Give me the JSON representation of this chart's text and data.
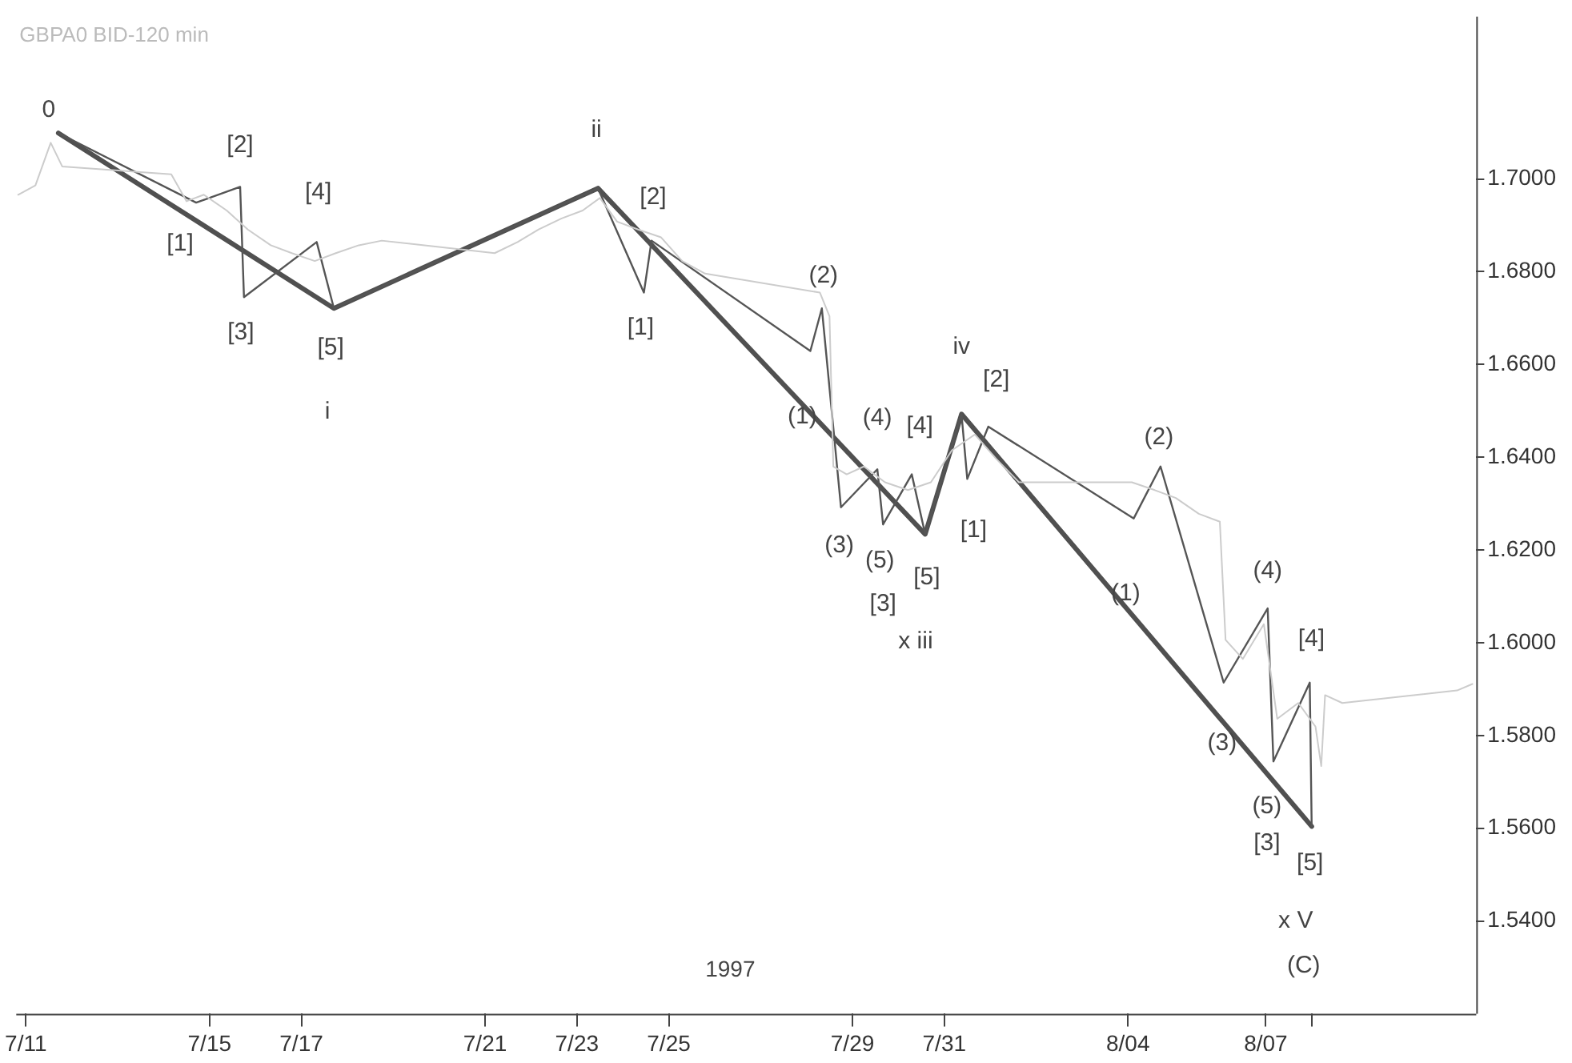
{
  "chart_data": {
    "type": "line",
    "title": "GBPA0 BID-120 min",
    "xlabel": "1997",
    "xlim": [
      "1997-07-10T19:00",
      "1997-08-11T14:00"
    ],
    "xticks": [
      {
        "value": "1997-07-11",
        "label": "7/11"
      },
      {
        "value": "1997-07-15",
        "label": "7/15"
      },
      {
        "value": "1997-07-17",
        "label": "7/17"
      },
      {
        "value": "1997-07-21",
        "label": "7/21"
      },
      {
        "value": "1997-07-23",
        "label": "7/23"
      },
      {
        "value": "1997-07-25",
        "label": "7/25"
      },
      {
        "value": "1997-07-29",
        "label": "7/29"
      },
      {
        "value": "1997-07-31",
        "label": "7/31"
      },
      {
        "value": "1997-08-04",
        "label": "8/04"
      },
      {
        "value": "1997-08-07",
        "label": "8/07"
      },
      {
        "value": "1997-08-08",
        "label": null
      }
    ],
    "ylim": [
      1.52,
      1.735
    ],
    "yticks": [
      {
        "value": 1.54,
        "label": "1.5400"
      },
      {
        "value": 1.56,
        "label": "1.5600"
      },
      {
        "value": 1.58,
        "label": "1.5800"
      },
      {
        "value": 1.6,
        "label": "1.6000"
      },
      {
        "value": 1.62,
        "label": "1.6200"
      },
      {
        "value": 1.64,
        "label": "1.6400"
      },
      {
        "value": 1.66,
        "label": "1.6600"
      },
      {
        "value": 1.68,
        "label": "1.6800"
      },
      {
        "value": 1.7,
        "label": "1.7000"
      }
    ],
    "grid": false,
    "legend": false,
    "marker": "none",
    "line_style": "solid",
    "series": [
      {
        "color": "#cccccc",
        "x": [
          "1997-07-10T20:00",
          "1997-07-11T05:00",
          "1997-07-11T13:00",
          "1997-07-11T19:00",
          "1997-07-14T04:00",
          "1997-07-14T12:00",
          "1997-07-14T21:00",
          "1997-07-15T09:00",
          "1997-07-15T20:00",
          "1997-07-16T08:00",
          "1997-07-16T19:00",
          "1997-07-17T07:00",
          "1997-07-17T18:00",
          "1997-07-18T06:00",
          "1997-07-18T18:00",
          "1997-07-21T05:00",
          "1997-07-21T17:00",
          "1997-07-22T04:00",
          "1997-07-22T16:00",
          "1997-07-23T03:00",
          "1997-07-23T12:00",
          "1997-07-23T21:00",
          "1997-07-24T08:00",
          "1997-07-24T20:00",
          "1997-07-25T07:00",
          "1997-07-25T19:00",
          "1997-07-28T07:00",
          "1997-07-28T12:00",
          "1997-07-28T14:00",
          "1997-07-28T21:00",
          "1997-07-29T06:00",
          "1997-07-29T17:00",
          "1997-07-30T05:00",
          "1997-07-30T17:00",
          "1997-07-31T04:00",
          "1997-07-31T16:00",
          "1997-08-01T03:00",
          "1997-08-01T15:00",
          "1997-08-04T02:00",
          "1997-08-04T14:00",
          "1997-08-05T01:00",
          "1997-08-05T13:00",
          "1997-08-06T00:00",
          "1997-08-06T03:00",
          "1997-08-06T12:00",
          "1997-08-06T23:00",
          "1997-08-07T06:00",
          "1997-08-07T17:00",
          "1997-08-08T02:00",
          "1997-08-08T05:00",
          "1997-08-08T07:00",
          "1997-08-08T16:00",
          "1997-08-11T04:00",
          "1997-08-11T12:00"
        ],
        "values": [
          1.6966,
          1.6986,
          1.7078,
          1.7027,
          1.701,
          1.6952,
          1.6966,
          1.6932,
          1.6891,
          1.6857,
          1.684,
          1.6823,
          1.684,
          1.6857,
          1.6867,
          1.684,
          1.6864,
          1.6891,
          1.6915,
          1.6932,
          1.6959,
          1.6908,
          1.6891,
          1.6874,
          1.6823,
          1.6796,
          1.6755,
          1.6704,
          1.638,
          1.6363,
          1.638,
          1.6346,
          1.6329,
          1.6346,
          1.6415,
          1.6449,
          1.6397,
          1.6346,
          1.6346,
          1.6329,
          1.6312,
          1.6278,
          1.6261,
          1.6006,
          1.5965,
          1.604,
          1.5836,
          1.587,
          1.5819,
          1.5734,
          1.5887,
          1.587,
          1.5897,
          1.5911
        ]
      },
      {
        "color": "#555555",
        "x": [
          "1997-07-11T17:00",
          "1997-07-14T17:00",
          "1997-07-15T16:00",
          "1997-07-15T18:00",
          "1997-07-17T08:00",
          "1997-07-17T17:00",
          "1997-07-23T11:00",
          "1997-07-24T11:00",
          "1997-07-24T15:00",
          "1997-07-28T02:00",
          "1997-07-28T08:00",
          "1997-07-28T18:00",
          "1997-07-29T13:00",
          "1997-07-29T16:00",
          "1997-07-30T07:00",
          "1997-07-30T14:00",
          "1997-07-31T09:00",
          "1997-07-31T12:00",
          "1997-07-31T23:00",
          "1997-08-04T03:00",
          "1997-08-04T17:00",
          "1997-08-06T02:00",
          "1997-08-07T01:00",
          "1997-08-07T04:00",
          "1997-08-07T23:00",
          "1997-08-08T00:00"
        ],
        "values": [
          1.7099,
          1.6949,
          1.6983,
          1.6745,
          1.6864,
          1.6721,
          1.698,
          1.6755,
          1.6867,
          1.6629,
          1.6721,
          1.6292,
          1.6374,
          1.6255,
          1.6363,
          1.6234,
          1.6493,
          1.6353,
          1.6466,
          1.6268,
          1.638,
          1.5914,
          1.6074,
          1.5744,
          1.5914,
          1.5604
        ]
      },
      {
        "color": "#505050",
        "x": [
          "1997-07-11T17:00",
          "1997-07-17T17:00",
          "1997-07-23T11:00",
          "1997-07-30T14:00",
          "1997-07-31T09:00",
          "1997-08-08T00:00"
        ],
        "values": [
          1.7099,
          1.6721,
          1.698,
          1.6234,
          1.6493,
          1.5604
        ]
      }
    ],
    "annotations": [
      {
        "text": "0",
        "x": "1997-07-11T17:00",
        "y": 1.7099
      },
      {
        "text": "[1]",
        "x": "1997-07-14T17:00",
        "y": 1.6949
      },
      {
        "text": "[2]",
        "x": "1997-07-15T16:00",
        "y": 1.6983
      },
      {
        "text": "[3]",
        "x": "1997-07-15T18:00",
        "y": 1.6745
      },
      {
        "text": "[4]",
        "x": "1997-07-17T08:00",
        "y": 1.6864
      },
      {
        "text": "[5]",
        "x": "1997-07-17T17:00",
        "y": 1.6721
      },
      "i",
      {
        "text": "ii",
        "x": "1997-07-23T11:00",
        "y": 1.698
      },
      {
        "text": "[1]",
        "x": "1997-07-24T11:00",
        "y": 1.6755
      },
      {
        "text": "[2]",
        "x": "1997-07-24T15:00",
        "y": 1.6867
      },
      {
        "text": "(1)",
        "x": "1997-07-28T02:00",
        "y": 1.6629
      },
      {
        "text": "(2)",
        "x": "1997-07-28T08:00",
        "y": 1.6721
      },
      {
        "text": "(3)",
        "x": "1997-07-28T18:00",
        "y": 1.6292
      },
      {
        "text": "(4)",
        "x": "1997-07-29T13:00",
        "y": 1.6374
      },
      {
        "text": "(5)",
        "x": "1997-07-29T16:00",
        "y": 1.6255
      },
      {
        "text": "[3]",
        "x": "1997-07-29T16:00",
        "y": 1.6255
      },
      {
        "text": "[4]",
        "x": "1997-07-30T07:00",
        "y": 1.6363
      },
      {
        "text": "[5]",
        "x": "1997-07-30T14:00",
        "y": 1.6234
      },
      "x iii",
      {
        "text": "iv",
        "x": "1997-07-31T09:00",
        "y": 1.6493
      },
      {
        "text": "[1]",
        "x": "1997-07-31T12:00",
        "y": 1.6353
      },
      {
        "text": "[2]",
        "x": "1997-07-31T23:00",
        "y": 1.6466
      },
      {
        "text": "(1)",
        "x": "1997-08-04T03:00",
        "y": 1.6268
      },
      {
        "text": "(2)",
        "x": "1997-08-04T17:00",
        "y": 1.638
      },
      {
        "text": "(3)",
        "x": "1997-08-06T02:00",
        "y": 1.5914
      },
      {
        "text": "(4)",
        "x": "1997-08-07T01:00",
        "y": 1.6074
      },
      {
        "text": "(5)",
        "x": "1997-08-07T04:00",
        "y": 1.5744
      },
      "[3]",
      {
        "text": "[4]",
        "x": "1997-08-07T23:00",
        "y": 1.5914
      },
      {
        "text": "[5]",
        "x": "1997-08-08T00:00",
        "y": 1.5604
      },
      "x V",
      "(C)"
    ]
  }
}
